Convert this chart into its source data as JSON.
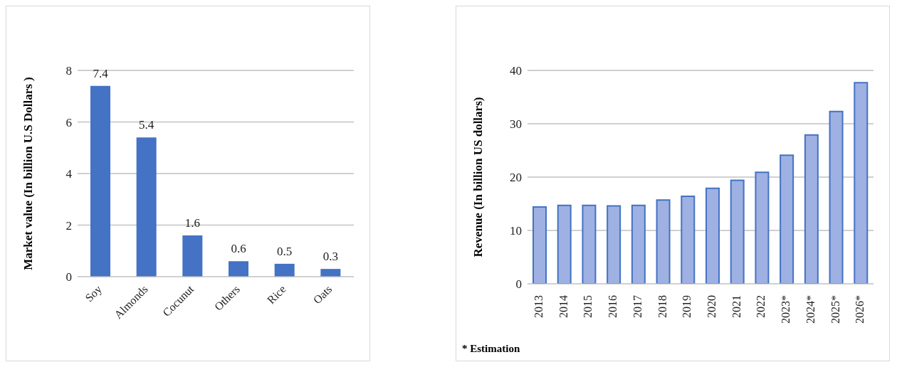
{
  "chart_data": [
    {
      "type": "bar",
      "ylabel": "Market value (In billion U.S Dollars )",
      "categories": [
        "Soy",
        "Almonds",
        "Cocunut",
        "Others",
        "Rice",
        "Oats"
      ],
      "values": [
        7.4,
        5.4,
        1.6,
        0.6,
        0.5,
        0.3
      ],
      "color": "#4472c4",
      "ylim": [
        0,
        8
      ],
      "yticks": [
        0,
        2,
        4,
        6,
        8
      ],
      "grid": "y",
      "data_labels": true
    },
    {
      "type": "bar",
      "ylabel": "Revenue (In billion US dollars)",
      "categories": [
        "2013",
        "2014",
        "2015",
        "2016",
        "2017",
        "2018",
        "2019",
        "2020",
        "2021",
        "2022",
        "2023*",
        "2024*",
        "2025*",
        "2026*"
      ],
      "values": [
        14.4,
        14.7,
        14.7,
        14.6,
        14.7,
        15.7,
        16.4,
        17.9,
        19.4,
        20.9,
        24.1,
        27.9,
        32.3,
        37.7
      ],
      "color": "#9eb1e2",
      "ylim": [
        0,
        40
      ],
      "yticks": [
        0,
        10,
        20,
        30,
        40
      ],
      "grid": "y",
      "annotations": [
        "* Estimation"
      ]
    }
  ]
}
